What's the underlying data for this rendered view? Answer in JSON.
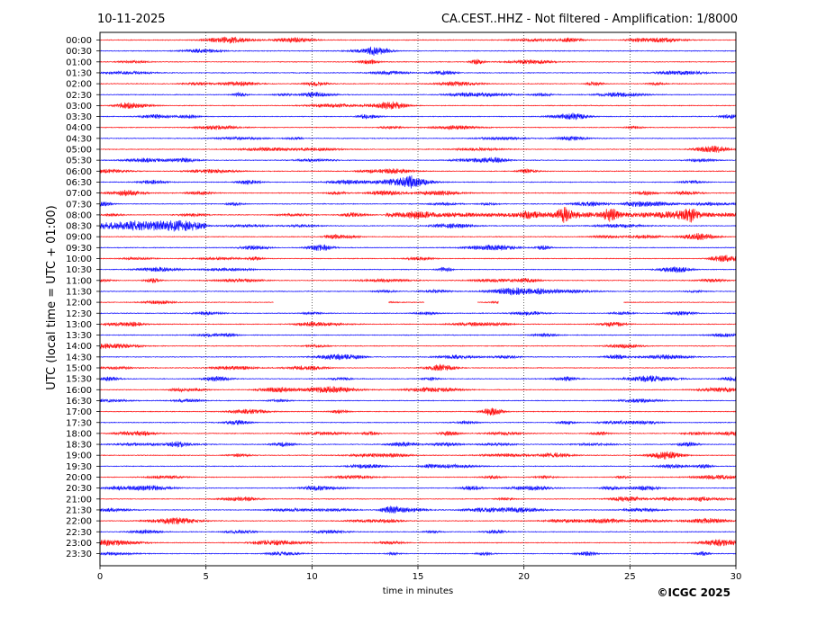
{
  "header": {
    "date": "10-11-2025",
    "title": "CA.CEST..HHZ - Not filtered - Amplification: 1/8000"
  },
  "footer": {
    "copyright": "©ICGC 2025"
  },
  "chart_data": {
    "type": "line",
    "title": "CA.CEST..HHZ - Not filtered - Amplification: 1/8000",
    "xlabel": "time in minutes",
    "ylabel": "UTC (local time = UTC + 01:00)",
    "xlim": [
      0,
      30
    ],
    "x_ticks": [
      "0",
      "5",
      "10",
      "15",
      "20",
      "25",
      "30"
    ],
    "grid": "vertical dotted",
    "row_labels": [
      "00:00",
      "00:30",
      "01:00",
      "01:30",
      "02:00",
      "02:30",
      "03:00",
      "03:30",
      "04:00",
      "04:30",
      "05:00",
      "05:30",
      "06:00",
      "06:30",
      "07:00",
      "07:30",
      "08:00",
      "08:30",
      "09:00",
      "09:30",
      "10:00",
      "10:30",
      "11:00",
      "11:30",
      "12:00",
      "12:30",
      "13:00",
      "13:30",
      "14:00",
      "14:30",
      "15:00",
      "15:30",
      "16:00",
      "16:30",
      "17:00",
      "17:30",
      "18:00",
      "18:30",
      "19:00",
      "19:30",
      "20:00",
      "20:30",
      "21:00",
      "21:30",
      "22:00",
      "22:30",
      "23:00",
      "23:30"
    ],
    "colors": {
      "even_rows": "#ff0000",
      "odd_rows": "#0000ff",
      "grid": "#000000"
    },
    "events": [
      {
        "row": "08:00",
        "x_start": 13.5,
        "x_end": 30,
        "peak_minutes": [
          21.9,
          24.1,
          27.8
        ],
        "description_visible": false
      },
      {
        "row": "08:30",
        "x_start": 0,
        "x_end": 5,
        "peak_minutes": [],
        "description_visible": false
      }
    ],
    "gaps": [
      {
        "row": "12:00",
        "segments_present": [
          [
            0,
            8.2
          ],
          [
            13.6,
            15.3
          ],
          [
            17.8,
            18.8
          ],
          [
            24.7,
            30
          ]
        ]
      }
    ]
  }
}
